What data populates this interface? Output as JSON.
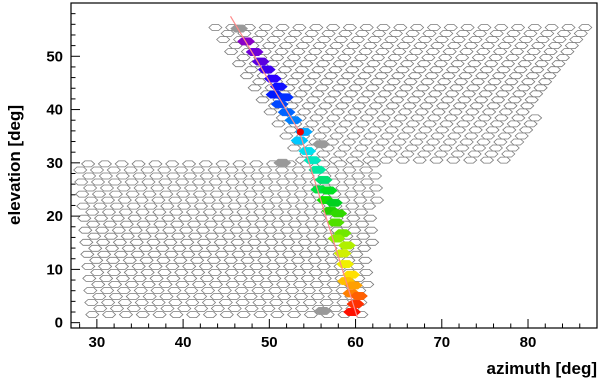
{
  "chart_data": {
    "type": "scatter",
    "title": "",
    "xlabel": "azimuth  [deg]",
    "ylabel": "elevation  [deg]",
    "xlim": [
      27,
      88
    ],
    "ylim": [
      -1,
      60
    ],
    "xticks": [
      30,
      40,
      50,
      60,
      70,
      80
    ],
    "yticks": [
      0,
      10,
      20,
      30,
      40,
      50
    ],
    "xminor_step": 2,
    "yminor_step": 2,
    "grid": false,
    "legend": "none",
    "camera_outline": {
      "color": "#7a7a7a",
      "upper_camera": {
        "elevation_range": [
          30,
          56
        ],
        "azimuth_at_top": [
          43.5,
          87
        ],
        "azimuth_at_bottom": [
          54,
          78
        ],
        "hex_spacing_deg": 1.3
      },
      "lower_camera": {
        "elevation_range": [
          1,
          30
        ],
        "azimuth_at_top": [
          28,
          63
        ],
        "azimuth_at_bottom": [
          29.5,
          61
        ],
        "hex_spacing_deg": 1.3
      }
    },
    "track_hits": [
      {
        "az": 46.5,
        "el": 55.2,
        "color": "#999999"
      },
      {
        "az": 47.3,
        "el": 52.8,
        "color": "#8a00c8"
      },
      {
        "az": 48.3,
        "el": 50.8,
        "color": "#7000d8"
      },
      {
        "az": 49.0,
        "el": 49.0,
        "color": "#5a00e0"
      },
      {
        "az": 49.7,
        "el": 47.5,
        "color": "#3c00f0"
      },
      {
        "az": 50.4,
        "el": 45.8,
        "color": "#2a00ff"
      },
      {
        "az": 51.1,
        "el": 44.3,
        "color": "#1010ff"
      },
      {
        "az": 50.6,
        "el": 42.8,
        "color": "#0018ff"
      },
      {
        "az": 51.8,
        "el": 42.3,
        "color": "#0030ff"
      },
      {
        "az": 51.2,
        "el": 41.0,
        "color": "#0048ff"
      },
      {
        "az": 52.0,
        "el": 39.5,
        "color": "#0064ff"
      },
      {
        "az": 52.8,
        "el": 38.0,
        "color": "#0080ff"
      },
      {
        "az": 54.0,
        "el": 35.8,
        "color": "#00a8ff"
      },
      {
        "az": 53.5,
        "el": 34.2,
        "color": "#00c8ff"
      },
      {
        "az": 56.0,
        "el": 33.5,
        "color": "#999999"
      },
      {
        "az": 54.4,
        "el": 32.2,
        "color": "#00e0f0"
      },
      {
        "az": 55.0,
        "el": 30.5,
        "color": "#00e8c0"
      },
      {
        "az": 51.5,
        "el": 30.0,
        "color": "#999999"
      },
      {
        "az": 55.6,
        "el": 28.7,
        "color": "#00e8a0"
      },
      {
        "az": 56.3,
        "el": 26.8,
        "color": "#00e070"
      },
      {
        "az": 55.8,
        "el": 25.0,
        "color": "#00e040"
      },
      {
        "az": 56.9,
        "el": 24.8,
        "color": "#00e020"
      },
      {
        "az": 56.5,
        "el": 23.0,
        "color": "#10e000"
      },
      {
        "az": 57.5,
        "el": 22.5,
        "color": "#00d020"
      },
      {
        "az": 57.1,
        "el": 21.0,
        "color": "#20d000"
      },
      {
        "az": 58.0,
        "el": 20.5,
        "color": "#30d800"
      },
      {
        "az": 57.7,
        "el": 18.8,
        "color": "#50e000"
      },
      {
        "az": 58.5,
        "el": 16.8,
        "color": "#70e800"
      },
      {
        "az": 57.8,
        "el": 15.8,
        "color": "#90f000"
      },
      {
        "az": 59.0,
        "el": 14.5,
        "color": "#b0f000"
      },
      {
        "az": 58.5,
        "el": 13.0,
        "color": "#d0f000"
      },
      {
        "az": 58.8,
        "el": 11.0,
        "color": "#f0f000"
      },
      {
        "az": 59.5,
        "el": 9.0,
        "color": "#ffe000"
      },
      {
        "az": 58.9,
        "el": 7.8,
        "color": "#ffc000"
      },
      {
        "az": 59.8,
        "el": 7.0,
        "color": "#ffa000"
      },
      {
        "az": 59.5,
        "el": 5.5,
        "color": "#ff8000"
      },
      {
        "az": 60.4,
        "el": 5.0,
        "color": "#ff6000"
      },
      {
        "az": 60.0,
        "el": 3.5,
        "color": "#ff3000"
      },
      {
        "az": 59.6,
        "el": 2.0,
        "color": "#ff1000"
      },
      {
        "az": 56.2,
        "el": 2.2,
        "color": "#999999"
      }
    ],
    "hit_hex_size_deg": 1.0,
    "track_line": {
      "color": "#ff8a8a",
      "points": [
        {
          "az": 45.5,
          "el": 57.5
        },
        {
          "az": 53.5,
          "el": 35.8
        },
        {
          "az": 60.2,
          "el": 1.0
        }
      ]
    },
    "marker": {
      "az": 53.6,
      "el": 35.8,
      "color": "#ee0000"
    }
  }
}
